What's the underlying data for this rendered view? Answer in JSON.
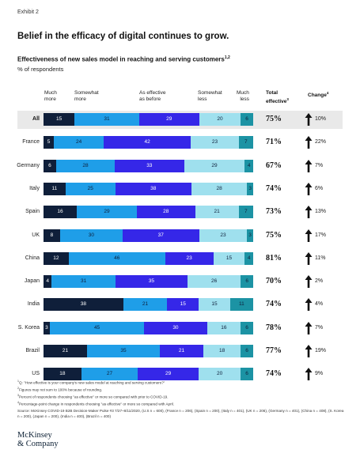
{
  "exhibit_label": "Exhibit 2",
  "headline": "Belief in the efficacy of digital continues to grow.",
  "title": "Effectiveness of new sales model in reaching and serving customers",
  "title_sup": "1,2",
  "subtitle": "% of respondents",
  "column_headers": {
    "much_more": "Much\nmore",
    "somewhat_more": "Somewhat\nmore",
    "as_effective": "As effective\nas before",
    "somewhat_less": "Somewhat\nless",
    "much_less": "Much\nless",
    "total": "Total\neffective",
    "total_sup": "3",
    "change": "Change",
    "change_sup": "4"
  },
  "colors": {
    "much_more": "#0f1f3a",
    "somewhat_more": "#1f9ee8",
    "as_effective": "#3527e8",
    "somewhat_less": "#9fe0ee",
    "much_less": "#1c93a4",
    "highlight_row": "#e9e9e9"
  },
  "chart_data": {
    "type": "bar",
    "orientation": "horizontal",
    "stacked": true,
    "categories": [
      "All",
      "France",
      "Germany",
      "Italy",
      "Spain",
      "UK",
      "China",
      "Japan",
      "India",
      "S. Korea",
      "Brazil",
      "US"
    ],
    "series": [
      {
        "name": "Much more",
        "values": [
          15,
          5,
          6,
          11,
          16,
          8,
          12,
          4,
          38,
          3,
          21,
          18
        ]
      },
      {
        "name": "Somewhat more",
        "values": [
          31,
          24,
          28,
          25,
          29,
          30,
          46,
          31,
          21,
          45,
          35,
          27
        ]
      },
      {
        "name": "As effective as before",
        "values": [
          29,
          42,
          33,
          38,
          28,
          37,
          23,
          35,
          15,
          30,
          21,
          29
        ]
      },
      {
        "name": "Somewhat less",
        "values": [
          20,
          23,
          29,
          28,
          21,
          23,
          15,
          26,
          15,
          16,
          18,
          20
        ]
      },
      {
        "name": "Much less",
        "values": [
          6,
          7,
          4,
          3,
          7,
          3,
          4,
          6,
          11,
          6,
          6,
          6
        ]
      }
    ],
    "total_effective": [
      "75%",
      "71%",
      "67%",
      "74%",
      "73%",
      "75%",
      "81%",
      "70%",
      "74%",
      "78%",
      "77%",
      "74%"
    ],
    "change": [
      "10%",
      "22%",
      "7%",
      "6%",
      "13%",
      "17%",
      "11%",
      "2%",
      "4%",
      "7%",
      "19%",
      "9%"
    ],
    "change_direction": [
      "up",
      "up",
      "up",
      "up",
      "up",
      "up",
      "up",
      "up",
      "up",
      "up",
      "up",
      "up"
    ]
  },
  "footnotes": [
    {
      "sup": "1",
      "text": "Q: \"How effective is your company's new sales model at reaching and serving customers?\""
    },
    {
      "sup": "2",
      "text": "Figures may not sum to 100% because of rounding."
    },
    {
      "sup": "3",
      "text": "Percent of respondents choosing \"as effective\" or more so compared with prior to COVID-19."
    },
    {
      "sup": "4",
      "text": "Percentage-point change in respondents choosing \"as effective\" or more so compared with April."
    },
    {
      "sup": "",
      "text": "Source: McKinsey COVID-19 B2B Decision-Maker Pulse #3 7/27–8/11/2020, (U.S n = 600), (France n = 206), (Spain n = 200), (Italy n = 401), (UK n = 206), (Germany n = 401), (China n = 408), (S. Korea n = 200), (Japan n = 200), (India n = 400), (Brazil n = 400)"
    }
  ],
  "logo": {
    "line1": "McKinsey",
    "line2": "& Company"
  }
}
